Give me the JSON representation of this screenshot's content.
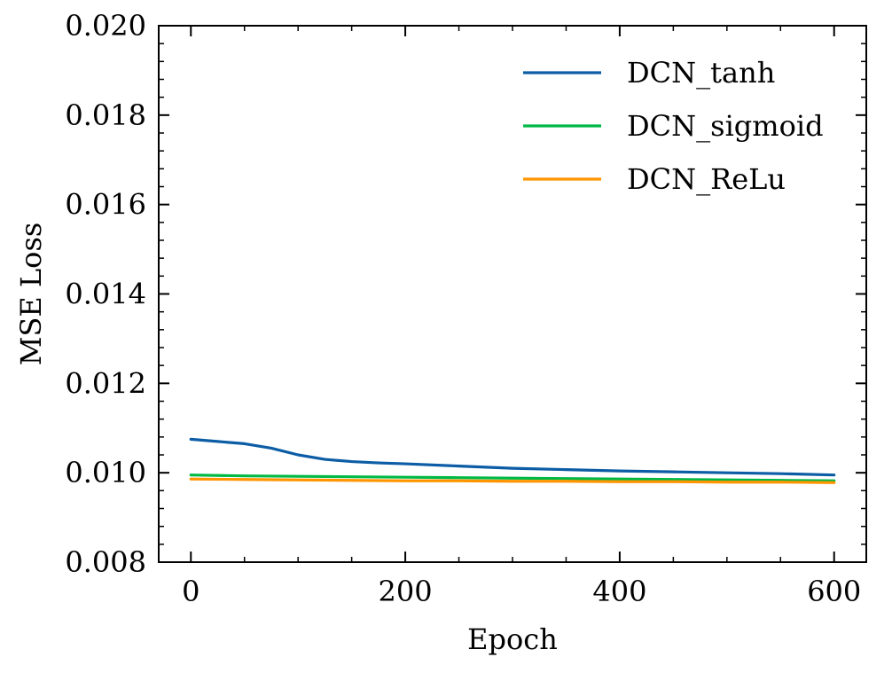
{
  "chart_data": {
    "type": "line",
    "title": "",
    "xlabel": "Epoch",
    "ylabel": "MSE Loss",
    "xlim": [
      -30,
      630
    ],
    "ylim": [
      0.008,
      0.02
    ],
    "xticks": [
      0,
      200,
      400,
      600
    ],
    "xtick_labels": [
      "0",
      "200",
      "400",
      "600"
    ],
    "yticks": [
      0.008,
      0.01,
      0.012,
      0.014,
      0.016,
      0.018,
      0.02
    ],
    "ytick_labels": [
      "0.008",
      "0.010",
      "0.012",
      "0.014",
      "0.016",
      "0.018",
      "0.020"
    ],
    "grid": false,
    "legend_position": "top-right",
    "series": [
      {
        "name": "DCN_tanh",
        "color": "#0C5DA5",
        "x": [
          0,
          25,
          50,
          75,
          100,
          125,
          150,
          175,
          200,
          250,
          300,
          350,
          400,
          450,
          500,
          550,
          600
        ],
        "values": [
          0.01075,
          0.0107,
          0.01065,
          0.01055,
          0.0104,
          0.0103,
          0.01025,
          0.01022,
          0.0102,
          0.01015,
          0.0101,
          0.01007,
          0.01004,
          0.01002,
          0.01,
          0.00998,
          0.00995
        ]
      },
      {
        "name": "DCN_sigmoid",
        "color": "#00B945",
        "x": [
          0,
          50,
          100,
          150,
          200,
          250,
          300,
          350,
          400,
          450,
          500,
          550,
          600
        ],
        "values": [
          0.00995,
          0.00993,
          0.00992,
          0.00991,
          0.0099,
          0.00989,
          0.00988,
          0.00987,
          0.00986,
          0.00985,
          0.00984,
          0.00983,
          0.00982
        ]
      },
      {
        "name": "DCN_ReLu",
        "color": "#FF9500",
        "x": [
          0,
          50,
          100,
          150,
          200,
          250,
          300,
          350,
          400,
          450,
          500,
          550,
          600
        ],
        "values": [
          0.00986,
          0.00985,
          0.00984,
          0.00983,
          0.00982,
          0.00982,
          0.00981,
          0.00981,
          0.0098,
          0.0098,
          0.00979,
          0.00979,
          0.00978
        ]
      }
    ]
  }
}
